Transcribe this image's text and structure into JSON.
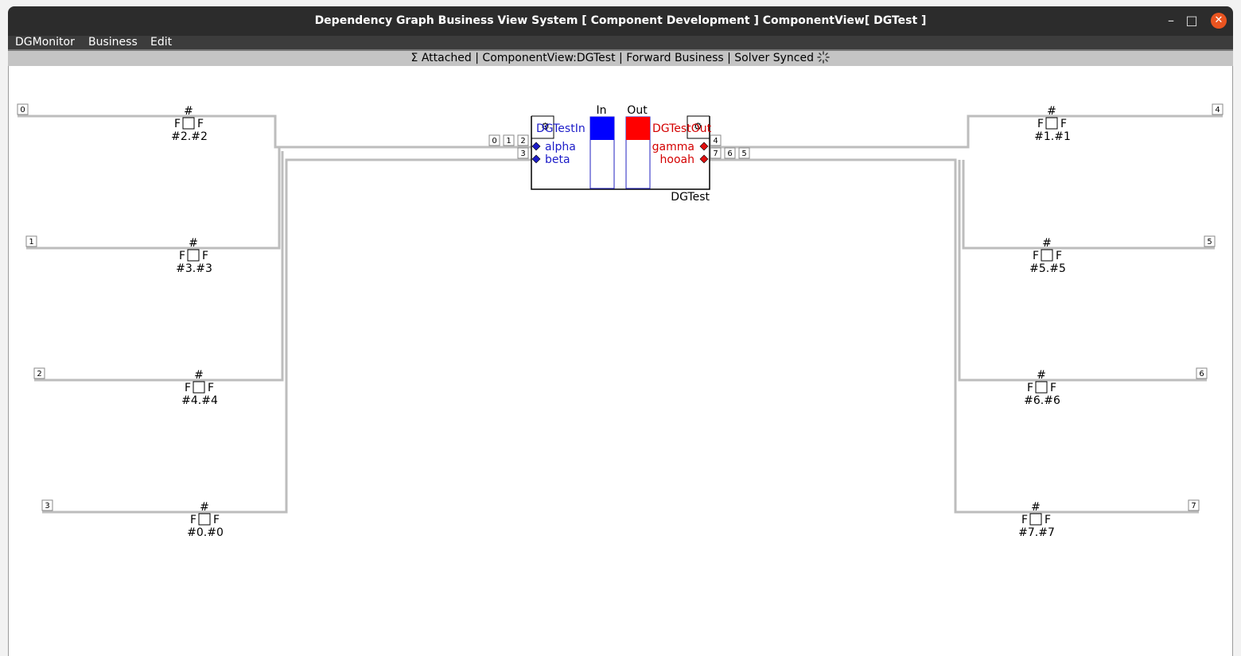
{
  "window": {
    "title": "Dependency Graph Business View System [ Component Development ] ComponentView[ DGTest ]",
    "minimize_glyph": "–",
    "maximize_glyph": "□",
    "close_glyph": "✕"
  },
  "menu": {
    "items": [
      {
        "label": "DGMonitor"
      },
      {
        "label": "Business"
      },
      {
        "label": "Edit"
      }
    ]
  },
  "status": {
    "text": "Σ  Attached | ComponentView:DGTest | Forward Business | Solver Synced",
    "spinner_icon": "loading-spinner-icon"
  },
  "component": {
    "name": "DGTest",
    "in_label": "In",
    "out_label": "Out",
    "in_port_title": "DGTestIn",
    "out_port_title": "DGTestOut",
    "inputs": [
      {
        "name": "alpha"
      },
      {
        "name": "beta"
      }
    ],
    "outputs": [
      {
        "name": "gamma"
      },
      {
        "name": "hooah"
      }
    ],
    "left_indices": [
      "0",
      "1",
      "2",
      "3"
    ],
    "right_indices": [
      "4",
      "7",
      "6",
      "5"
    ],
    "colors": {
      "in": "#0000ff",
      "out": "#ff0000"
    }
  },
  "left_nodes": [
    {
      "index": "0",
      "hash": "#",
      "flag_left": "F",
      "flag_right": "F",
      "label": "#2.#2"
    },
    {
      "index": "1",
      "hash": "#",
      "flag_left": "F",
      "flag_right": "F",
      "label": "#3.#3"
    },
    {
      "index": "2",
      "hash": "#",
      "flag_left": "F",
      "flag_right": "F",
      "label": "#4.#4"
    },
    {
      "index": "3",
      "hash": "#",
      "flag_left": "F",
      "flag_right": "F",
      "label": "#0.#0"
    }
  ],
  "right_nodes": [
    {
      "index": "4",
      "hash": "#",
      "flag_left": "F",
      "flag_right": "F",
      "label": "#1.#1"
    },
    {
      "index": "5",
      "hash": "#",
      "flag_left": "F",
      "flag_right": "F",
      "label": "#5.#5"
    },
    {
      "index": "6",
      "hash": "#",
      "flag_left": "F",
      "flag_right": "F",
      "label": "#6.#6"
    },
    {
      "index": "7",
      "hash": "#",
      "flag_left": "F",
      "flag_right": "F",
      "label": "#7.#7"
    }
  ]
}
